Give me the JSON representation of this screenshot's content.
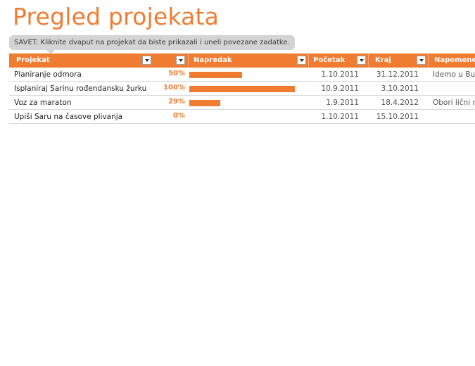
{
  "title": "Pregled projekata",
  "tip": "SAVET: Kliknite dvaput na projekat da biste prikazali i uneli povezane zadatke.",
  "colors": {
    "accent": "#f07c32",
    "tip_bg": "#d4d4d4"
  },
  "columns": [
    "Projekat",
    "Napredak",
    "Početak",
    "Kraj",
    "Napomene"
  ],
  "rows": [
    {
      "project": "Planiranje odmora",
      "progress": 0.5,
      "progress_label": "50%",
      "start": "1.10.2011",
      "end": "31.12.2011",
      "notes": "Idemo u Bud"
    },
    {
      "project": "Isplaniraj Sarinu rođendansku žurku",
      "progress": 1.0,
      "progress_label": "100%",
      "start": "10.9.2011",
      "end": "3.10.2011",
      "notes": ""
    },
    {
      "project": "Voz za maraton",
      "progress": 0.29,
      "progress_label": "29%",
      "start": "1.9.2011",
      "end": "18.4.2012",
      "notes": "Obori lični re"
    },
    {
      "project": "Upiši Saru na časove plivanja",
      "progress": 0,
      "progress_label": "0%",
      "start": "1.10.2011",
      "end": "15.10.2011",
      "notes": ""
    }
  ]
}
